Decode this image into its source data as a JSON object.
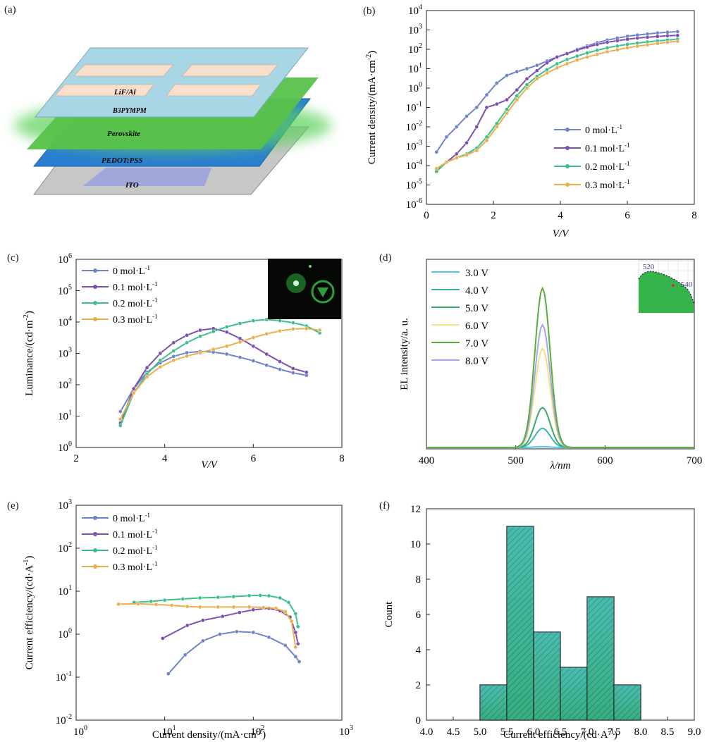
{
  "labels": {
    "a": "(a)",
    "b": "(b)",
    "c": "(c)",
    "d": "(d)",
    "e": "(e)",
    "f": "(f)"
  },
  "device": {
    "layers": [
      "LiF/Al",
      "B3PYMPM",
      "Perovskite",
      "PEDOT:PSS",
      "ITO"
    ],
    "colors": {
      "top": "#a9d6e5",
      "electrode": "#f8dfcb",
      "perovskite": "#5bbf4a",
      "pedot": "#2a7fd0",
      "ito": "#bfbfbf",
      "ito_pad": "#9aa3dd"
    }
  },
  "legend_conc": [
    "0 mol·L",
    "0.1 mol·L",
    "0.2 mol·L",
    "0.3 mol·L"
  ],
  "series_colors": [
    "#6c84c8",
    "#7d4fb0",
    "#3dbf8c",
    "#e9b050"
  ],
  "chart_data": [
    {
      "id": "b",
      "type": "line",
      "yscale": "log",
      "xlabel": "V/V",
      "ylabel": "Current density/(mA·cm",
      "xlim": [
        0,
        8
      ],
      "ylim": [
        1e-06,
        10000.0
      ],
      "xticks": [
        "0",
        "2",
        "4",
        "6",
        "8"
      ],
      "yticks": [
        "10",
        "10",
        "10",
        "10",
        "10",
        "10",
        "10",
        "10",
        "10",
        "10",
        "10"
      ],
      "ytick_exp": [
        "-6",
        "-5",
        "-4",
        "-3",
        "-2",
        "-1",
        "0",
        "1",
        "2",
        "3",
        "4"
      ],
      "legend": [
        "0 mol·L",
        "0.1 mol·L",
        "0.2 mol·L",
        "0.3 mol·L"
      ],
      "series": [
        {
          "name": "0 mol·L⁻¹",
          "x": [
            0.3,
            0.6,
            0.9,
            1.2,
            1.5,
            1.8,
            2.1,
            2.4,
            2.7,
            3.0,
            3.3,
            3.6,
            3.9,
            4.2,
            4.5,
            4.8,
            5.1,
            5.4,
            5.7,
            6.0,
            6.3,
            6.6,
            6.9,
            7.2,
            7.5
          ],
          "y": [
            0.0005,
            0.003,
            0.01,
            0.035,
            0.1,
            0.45,
            1.8,
            4.5,
            7,
            10,
            15,
            25,
            40,
            60,
            100,
            150,
            220,
            300,
            380,
            470,
            550,
            620,
            700,
            760,
            820
          ]
        },
        {
          "name": "0.1 mol·L⁻¹",
          "x": [
            0.3,
            0.6,
            0.9,
            1.2,
            1.5,
            1.8,
            2.1,
            2.4,
            2.7,
            3.0,
            3.3,
            3.6,
            3.9,
            4.2,
            4.5,
            4.8,
            5.1,
            5.4,
            5.7,
            6.0,
            6.3,
            6.6,
            6.9,
            7.2,
            7.5
          ],
          "y": [
            6e-05,
            0.00015,
            0.0004,
            0.0015,
            0.01,
            0.1,
            0.15,
            0.25,
            0.8,
            3,
            8,
            20,
            40,
            60,
            90,
            130,
            180,
            230,
            280,
            330,
            380,
            420,
            460,
            500,
            520
          ]
        },
        {
          "name": "0.2 mol·L⁻¹",
          "x": [
            0.3,
            0.6,
            0.9,
            1.2,
            1.5,
            1.8,
            2.1,
            2.4,
            2.7,
            3.0,
            3.3,
            3.6,
            3.9,
            4.2,
            4.5,
            4.8,
            5.1,
            5.4,
            5.7,
            6.0,
            6.3,
            6.6,
            6.9,
            7.2,
            7.5
          ],
          "y": [
            5e-05,
            0.00015,
            0.00025,
            0.0004,
            0.0008,
            0.003,
            0.015,
            0.08,
            0.4,
            1.5,
            4,
            9,
            18,
            30,
            45,
            65,
            90,
            120,
            150,
            180,
            210,
            240,
            270,
            300,
            330
          ]
        },
        {
          "name": "0.3 mol·L⁻¹",
          "x": [
            0.3,
            0.6,
            0.9,
            1.2,
            1.5,
            1.8,
            2.1,
            2.4,
            2.7,
            3.0,
            3.3,
            3.6,
            3.9,
            4.2,
            4.5,
            4.8,
            5.1,
            5.4,
            5.7,
            6.0,
            6.3,
            6.6,
            6.9,
            7.2,
            7.5
          ],
          "y": [
            7e-05,
            0.00015,
            0.00025,
            0.00035,
            0.0006,
            0.002,
            0.01,
            0.05,
            0.25,
            1,
            3,
            6,
            11,
            18,
            28,
            40,
            55,
            75,
            95,
            120,
            145,
            170,
            200,
            230,
            260
          ]
        }
      ]
    },
    {
      "id": "c",
      "type": "line",
      "yscale": "log",
      "xlabel": "V/V",
      "ylabel": "Luminance/(cd·m",
      "xlim": [
        2,
        8
      ],
      "ylim": [
        1,
        1000000.0
      ],
      "xticks": [
        "2",
        "4",
        "6",
        "8"
      ],
      "yticks": [
        "10",
        "10",
        "10",
        "10",
        "10",
        "10",
        "10"
      ],
      "ytick_exp": [
        "0",
        "1",
        "2",
        "3",
        "4",
        "5",
        "6"
      ],
      "legend": [
        "0 mol·L",
        "0.1 mol·L",
        "0.2 mol·L",
        "0.3 mol·L"
      ],
      "series": [
        {
          "name": "0 mol·L⁻¹",
          "x": [
            3.0,
            3.3,
            3.6,
            3.9,
            4.2,
            4.5,
            4.8,
            5.1,
            5.4,
            5.7,
            6.0,
            6.3,
            6.6,
            6.9,
            7.2
          ],
          "y": [
            14,
            75,
            250,
            500,
            800,
            1050,
            1150,
            1100,
            950,
            750,
            580,
            420,
            310,
            240,
            200
          ]
        },
        {
          "name": "0.1 mol·L⁻¹",
          "x": [
            3.0,
            3.3,
            3.6,
            3.9,
            4.2,
            4.5,
            4.8,
            5.1,
            5.4,
            5.7,
            6.0,
            6.3,
            6.6,
            6.9,
            7.2
          ],
          "y": [
            6,
            75,
            350,
            1000,
            2200,
            3800,
            5500,
            6200,
            4800,
            3000,
            1700,
            950,
            550,
            330,
            250
          ]
        },
        {
          "name": "0.2 mol·L⁻¹",
          "x": [
            3.0,
            3.3,
            3.6,
            3.9,
            4.2,
            4.5,
            4.8,
            5.1,
            5.4,
            5.7,
            6.0,
            6.3,
            6.6,
            6.9,
            7.2,
            7.5
          ],
          "y": [
            5,
            55,
            220,
            600,
            1200,
            2200,
            3500,
            5000,
            7000,
            9000,
            11000,
            12000,
            11000,
            9500,
            7500,
            4500
          ]
        },
        {
          "name": "0.3 mol·L⁻¹",
          "x": [
            3.0,
            3.3,
            3.6,
            3.9,
            4.2,
            4.5,
            4.8,
            5.1,
            5.4,
            5.7,
            6.0,
            6.3,
            6.6,
            6.9,
            7.2,
            7.5
          ],
          "y": [
            8,
            55,
            180,
            370,
            600,
            820,
            1050,
            1350,
            1700,
            2300,
            3200,
            4200,
            5200,
            6000,
            6200,
            5500
          ]
        }
      ]
    },
    {
      "id": "d",
      "type": "line",
      "xlabel": "λ/nm",
      "ylabel": "EL intensity/a. u.",
      "xlim": [
        400,
        700
      ],
      "xticks": [
        "400",
        "500",
        "600",
        "700"
      ],
      "legend": [
        "3.0 V",
        "4.0 V",
        "5.0 V",
        "6.0 V",
        "7.0 V",
        "8.0 V"
      ],
      "peak_nm": 530,
      "fwhm_nm": 20,
      "peak_intensity": [
        0.005,
        0.12,
        0.25,
        0.62,
        1.0,
        0.77
      ],
      "inset": {
        "labels": [
          "520",
          "540"
        ]
      }
    },
    {
      "id": "e",
      "type": "line",
      "xscale": "log",
      "yscale": "log",
      "xlabel": "Current density/(mA·cm",
      "ylabel": "Current efficiency/(cd·A",
      "xlim": [
        1,
        1000
      ],
      "ylim": [
        0.01,
        1000
      ],
      "xticks": [
        "10",
        "10",
        "10",
        "10"
      ],
      "xtick_exp": [
        "0",
        "1",
        "2",
        "3"
      ],
      "yticks": [
        "10",
        "10",
        "10",
        "10",
        "10",
        "10"
      ],
      "ytick_exp": [
        "-2",
        "-1",
        "0",
        "1",
        "2",
        "3"
      ],
      "legend": [
        "0 mol·L",
        "0.1 mol·L",
        "0.2 mol·L",
        "0.3 mol·L"
      ],
      "series": [
        {
          "name": "0 mol·L⁻¹",
          "x": [
            11,
            17,
            27,
            42,
            65,
            100,
            150,
            230,
            300,
            330
          ],
          "y": [
            0.12,
            0.33,
            0.7,
            1.0,
            1.15,
            1.1,
            0.85,
            0.55,
            0.3,
            0.23
          ]
        },
        {
          "name": "0.1 mol·L⁻¹",
          "x": [
            9.5,
            18,
            27,
            45,
            70,
            100,
            150,
            200,
            260,
            300,
            320
          ],
          "y": [
            0.8,
            1.6,
            2.1,
            2.6,
            3.2,
            3.7,
            4.0,
            3.5,
            2.5,
            1.1,
            0.6
          ]
        },
        {
          "name": "0.2 mol·L⁻¹",
          "x": [
            4.5,
            7,
            10,
            16,
            25,
            40,
            60,
            90,
            120,
            150,
            200,
            250,
            300,
            320
          ],
          "y": [
            5.5,
            5.8,
            6.2,
            6.6,
            7.0,
            7.2,
            7.5,
            7.9,
            8.0,
            7.8,
            7.0,
            5.5,
            3.0,
            1.5
          ]
        },
        {
          "name": "0.3 mol·L⁻¹",
          "x": [
            3,
            5,
            8,
            12,
            18,
            25,
            40,
            60,
            90,
            130,
            180,
            230,
            270,
            300
          ],
          "y": [
            5.0,
            5.1,
            4.9,
            4.7,
            4.4,
            4.3,
            4.3,
            4.3,
            4.3,
            4.2,
            4.0,
            3.3,
            2.0,
            0.5
          ]
        }
      ]
    },
    {
      "id": "f",
      "type": "bar",
      "xlabel": "Current efficiency/(cd·A",
      "ylabel": "Count",
      "xlim": [
        4.0,
        9.0
      ],
      "ylim": [
        0,
        12
      ],
      "xticks": [
        "4.0",
        "4.5",
        "5.0",
        "5.5",
        "6.0",
        "6.5",
        "7.0",
        "7.5",
        "8.0",
        "8.5",
        "9.0"
      ],
      "yticks": [
        "0",
        "2",
        "4",
        "6",
        "8",
        "10",
        "12"
      ],
      "bins": [
        [
          5.0,
          5.5
        ],
        [
          5.5,
          6.0
        ],
        [
          6.0,
          6.5
        ],
        [
          6.5,
          7.0
        ],
        [
          7.0,
          7.5
        ],
        [
          7.5,
          8.0
        ]
      ],
      "values": [
        2,
        11,
        5,
        3,
        7,
        2
      ]
    }
  ]
}
